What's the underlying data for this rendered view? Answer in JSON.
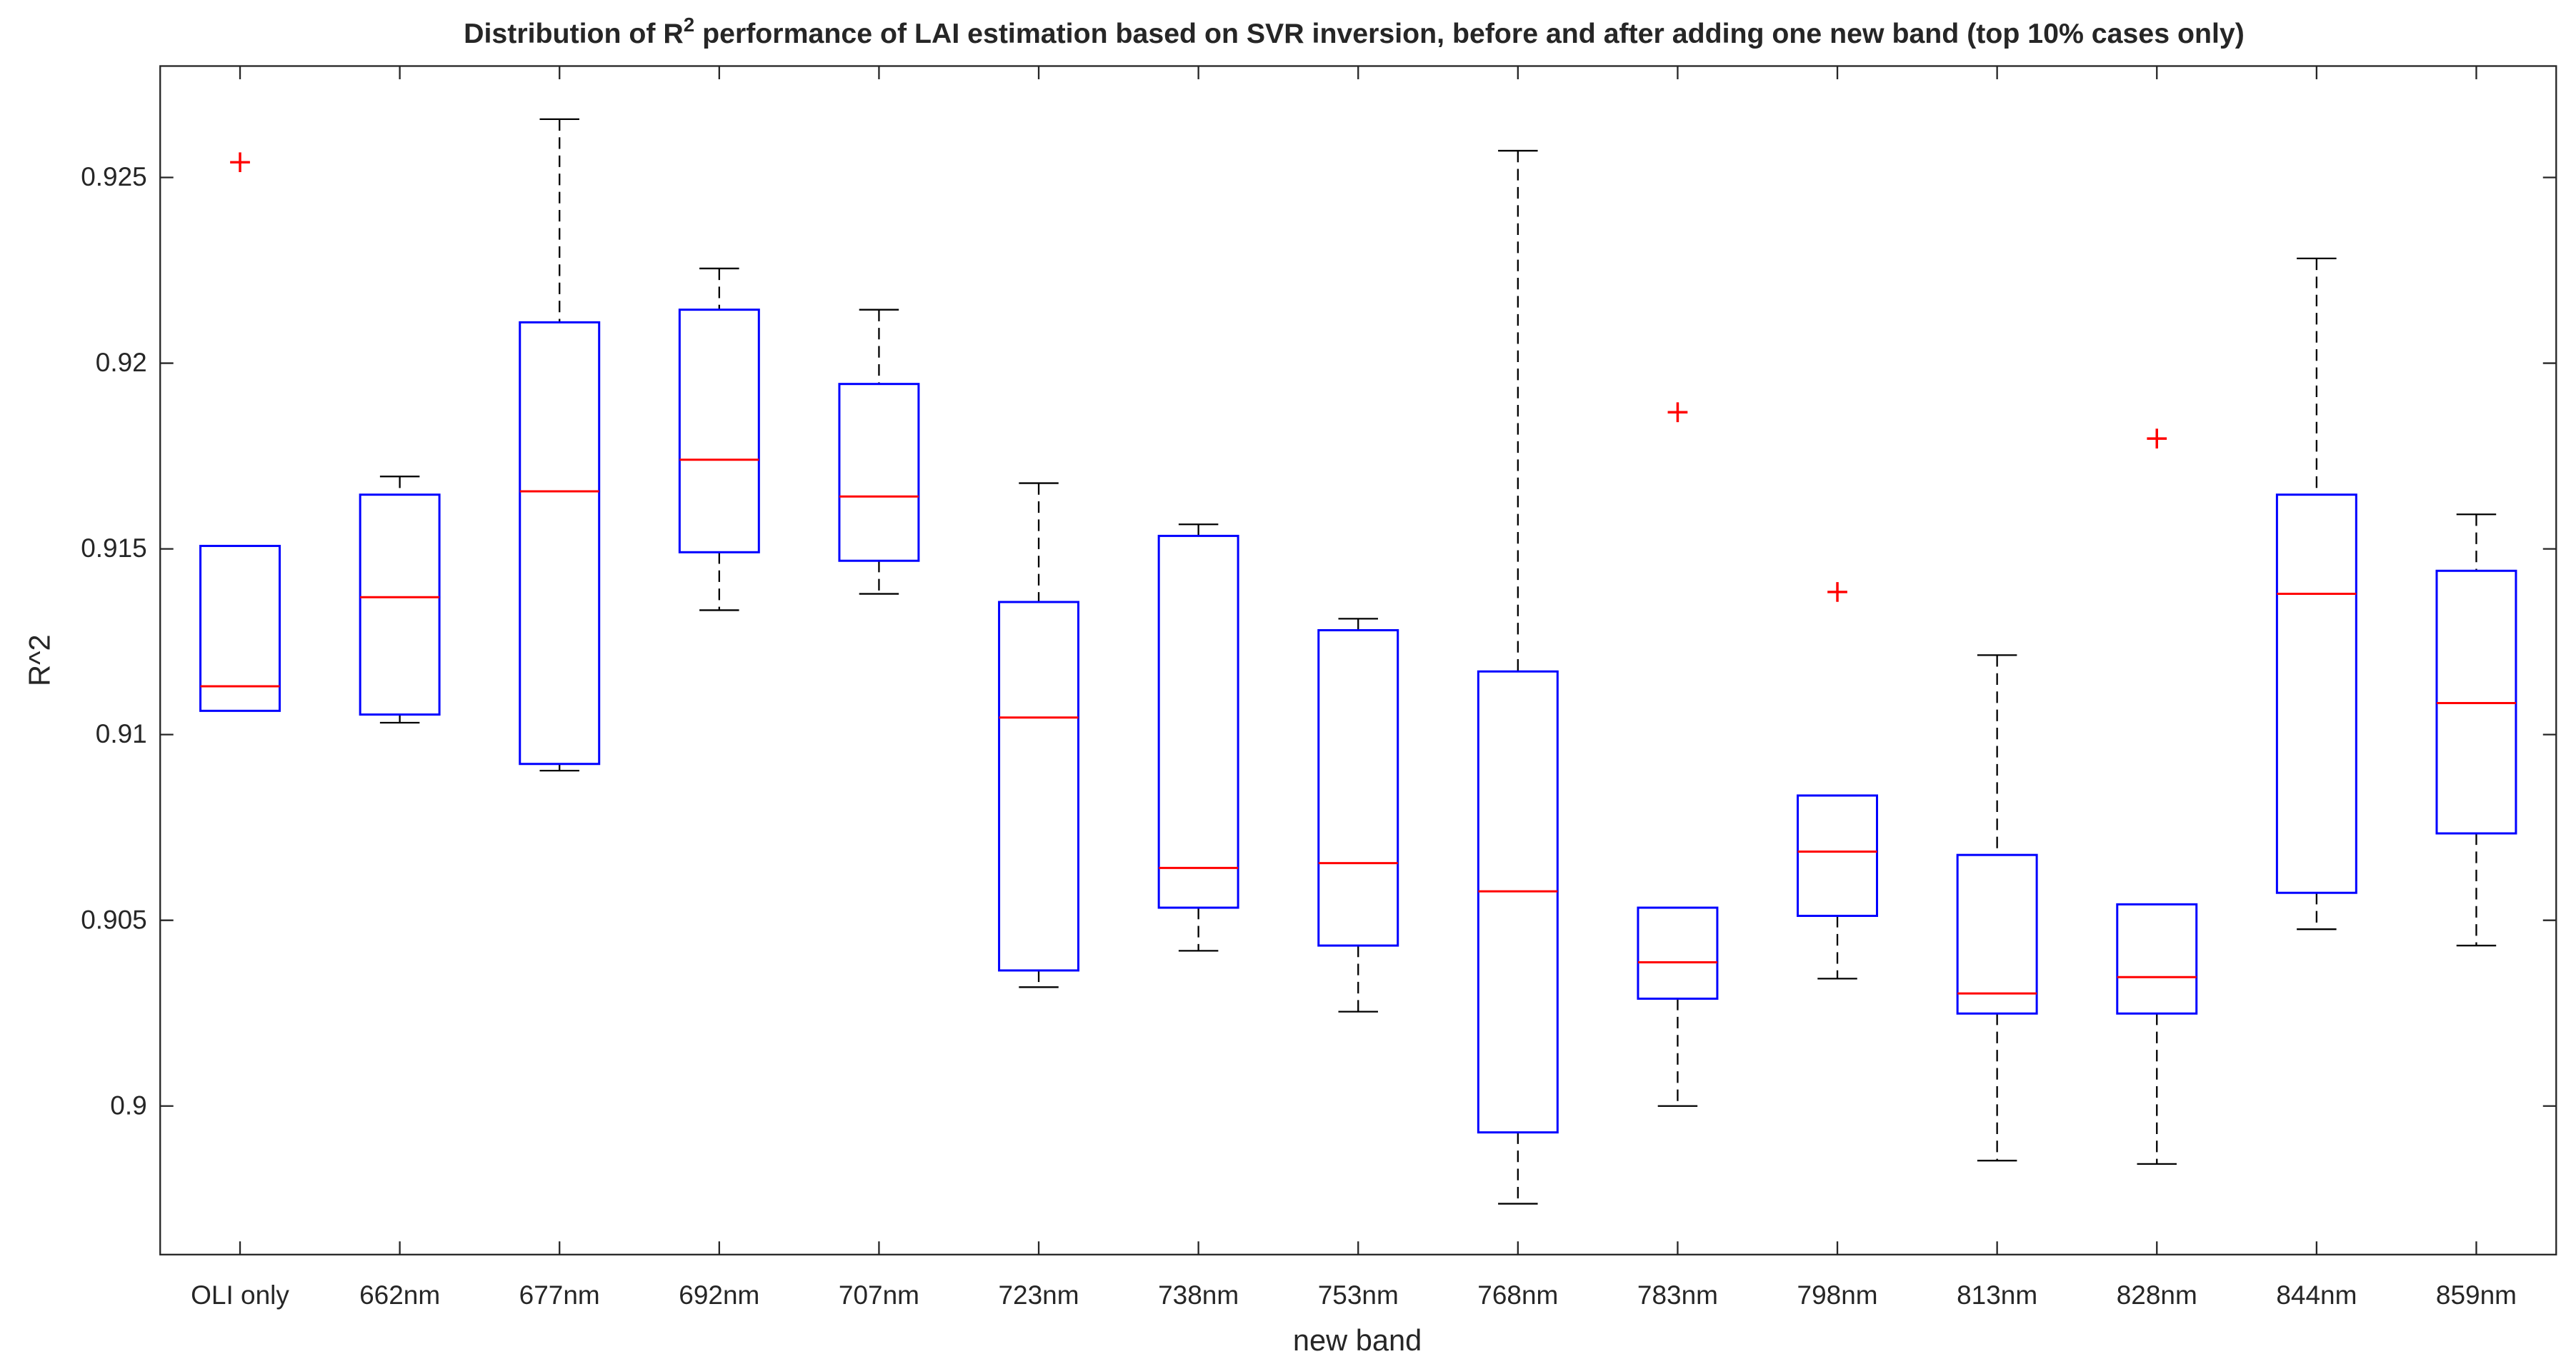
{
  "chart_data": {
    "type": "box",
    "title": "Distribution of R",
    "title_superscript": "2",
    "title_rest": " performance of LAI estimation based on SVR inversion, before and after adding one new band (top 10% cases only)",
    "x_label": "new band",
    "y_label": "R^2",
    "categories": [
      "OLI only",
      "662nm",
      "677nm",
      "692nm",
      "707nm",
      "723nm",
      "738nm",
      "753nm",
      "768nm",
      "783nm",
      "798nm",
      "813nm",
      "828nm",
      "844nm",
      "859nm"
    ],
    "boxes": [
      {
        "whisker_low": 0.91064,
        "q1": 0.91064,
        "median": 0.9113,
        "q3": 0.91508,
        "whisker_high": 0.91508,
        "outliers": [
          0.92541
        ]
      },
      {
        "whisker_low": 0.91032,
        "q1": 0.91054,
        "median": 0.9137,
        "q3": 0.91646,
        "whisker_high": 0.91695,
        "outliers": []
      },
      {
        "whisker_low": 0.90903,
        "q1": 0.90921,
        "median": 0.91655,
        "q3": 0.9211,
        "whisker_high": 0.92657,
        "outliers": []
      },
      {
        "whisker_low": 0.91335,
        "q1": 0.91491,
        "median": 0.9174,
        "q3": 0.92144,
        "whisker_high": 0.92255,
        "outliers": []
      },
      {
        "whisker_low": 0.91379,
        "q1": 0.91468,
        "median": 0.91641,
        "q3": 0.91944,
        "whisker_high": 0.92144,
        "outliers": []
      },
      {
        "whisker_low": 0.9032,
        "q1": 0.90365,
        "median": 0.91046,
        "q3": 0.91357,
        "whisker_high": 0.91677,
        "outliers": []
      },
      {
        "whisker_low": 0.90418,
        "q1": 0.90534,
        "median": 0.90641,
        "q3": 0.91535,
        "whisker_high": 0.91566,
        "outliers": []
      },
      {
        "whisker_low": 0.90254,
        "q1": 0.90432,
        "median": 0.90654,
        "q3": 0.91281,
        "whisker_high": 0.91312,
        "outliers": []
      },
      {
        "whisker_low": 0.89737,
        "q1": 0.89929,
        "median": 0.90578,
        "q3": 0.9117,
        "whisker_high": 0.92572,
        "outliers": []
      },
      {
        "whisker_low": 0.9,
        "q1": 0.90289,
        "median": 0.90387,
        "q3": 0.90534,
        "whisker_high": 0.90534,
        "outliers": [
          0.91868
        ]
      },
      {
        "whisker_low": 0.90343,
        "q1": 0.90512,
        "median": 0.90685,
        "q3": 0.90836,
        "whisker_high": 0.90836,
        "outliers": [
          0.91384
        ]
      },
      {
        "whisker_low": 0.89853,
        "q1": 0.90249,
        "median": 0.90303,
        "q3": 0.90676,
        "whisker_high": 0.91214,
        "outliers": []
      },
      {
        "whisker_low": 0.89844,
        "q1": 0.90249,
        "median": 0.90347,
        "q3": 0.90543,
        "whisker_high": 0.90543,
        "outliers": [
          0.91797
        ]
      },
      {
        "whisker_low": 0.90476,
        "q1": 0.90574,
        "median": 0.91379,
        "q3": 0.91646,
        "whisker_high": 0.92282,
        "outliers": []
      },
      {
        "whisker_low": 0.90432,
        "q1": 0.90734,
        "median": 0.91085,
        "q3": 0.91441,
        "whisker_high": 0.91593,
        "outliers": []
      }
    ],
    "box_color": "#0000ff",
    "median_color": "#ff0000",
    "whisker_color": "#000000",
    "outlier_color": "#ff0000",
    "ylim": [
      0.896,
      0.928
    ],
    "yticks": [
      0.9,
      0.905,
      0.91,
      0.915,
      0.92,
      0.925
    ],
    "grid": false
  }
}
